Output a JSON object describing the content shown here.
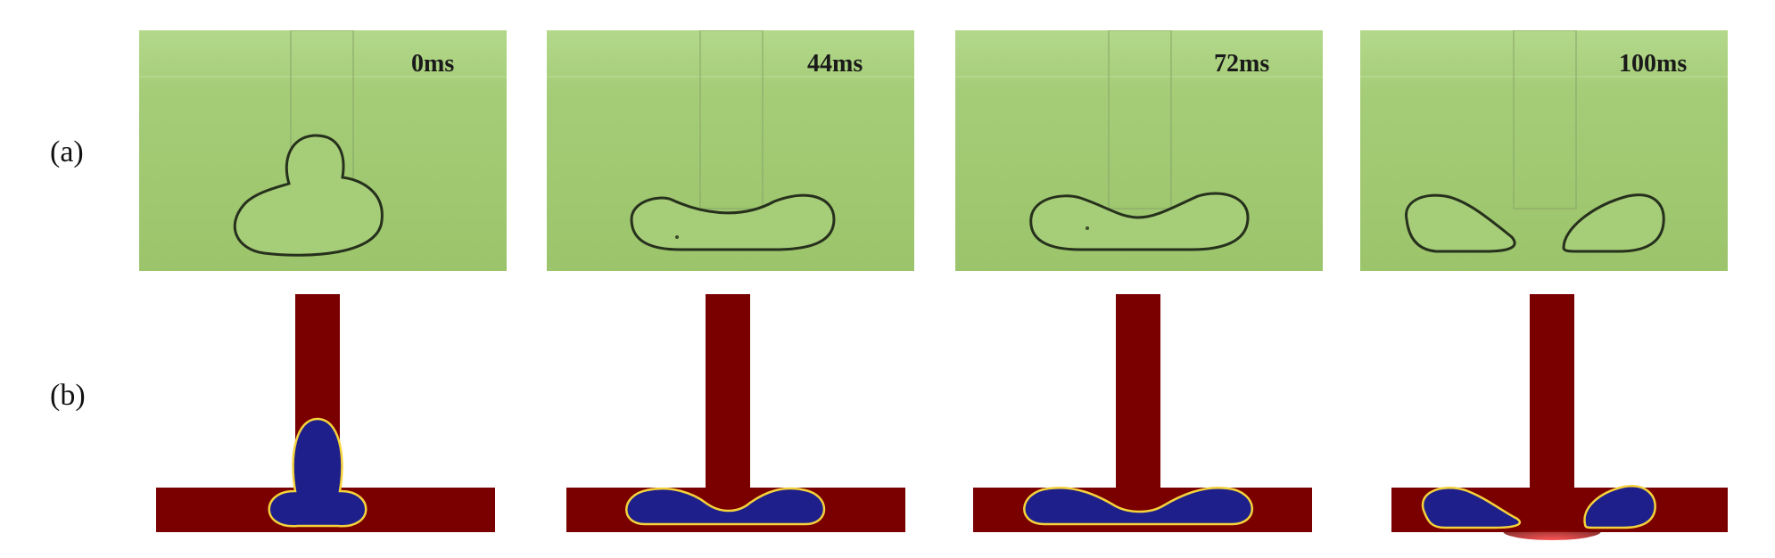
{
  "rows": {
    "a_label": "(a)",
    "b_label": "(b)"
  },
  "frames": [
    {
      "time": "0ms"
    },
    {
      "time": "44ms"
    },
    {
      "time": "72ms"
    },
    {
      "time": "100ms"
    }
  ],
  "colors": {
    "experiment_background": "#9ec76d",
    "experiment_outline": "#2a3320",
    "simulation_channel": "#7a0000",
    "simulation_droplet": "#1f1f8c",
    "simulation_interface": "#f4d23a"
  }
}
